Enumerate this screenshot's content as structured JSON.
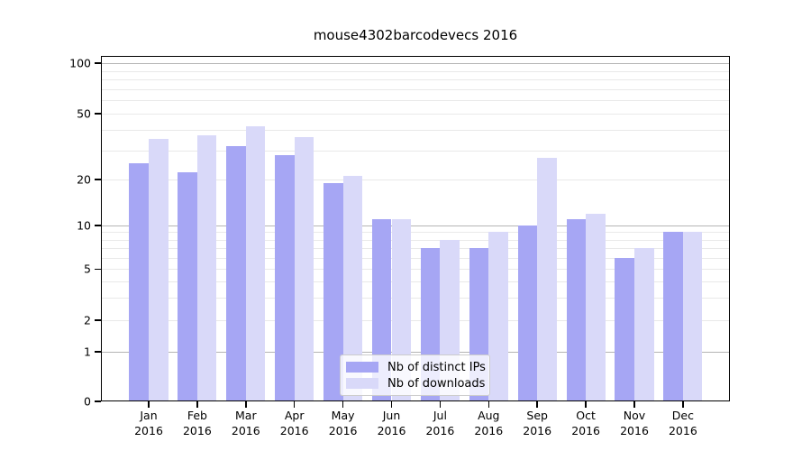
{
  "title": "mouse4302barcodevecs 2016",
  "legend": {
    "items": [
      {
        "label": "Nb of distinct IPs",
        "color": "#a6a6f4"
      },
      {
        "label": "Nb of downloads",
        "color": "#d9d9f9"
      }
    ]
  },
  "colors": {
    "series_ips": "#a6a6f4",
    "series_downloads": "#d9d9f9",
    "major_gridline": "#b4b4b4",
    "minor_gridline": "#e9e9e9",
    "axis": "#000000"
  },
  "chart_data": {
    "type": "bar",
    "title": "mouse4302barcodevecs 2016",
    "categories": [
      "Jan 2016",
      "Feb 2016",
      "Mar 2016",
      "Apr 2016",
      "May 2016",
      "Jun 2016",
      "Jul 2016",
      "Aug 2016",
      "Sep 2016",
      "Oct 2016",
      "Nov 2016",
      "Dec 2016"
    ],
    "series": [
      {
        "name": "Nb of distinct IPs",
        "color": "#a6a6f4",
        "values": [
          25,
          22,
          32,
          28,
          19,
          11,
          7,
          7,
          10,
          11,
          6,
          9
        ]
      },
      {
        "name": "Nb of downloads",
        "color": "#d9d9f9",
        "values": [
          35,
          37,
          42,
          36,
          21,
          11,
          8,
          9,
          27,
          12,
          7,
          9
        ]
      }
    ],
    "xlabel": "",
    "ylabel": "",
    "yscale": "symlog",
    "ylim": [
      0,
      100
    ],
    "yticks": [
      0,
      1,
      2,
      5,
      10,
      20,
      50,
      100
    ],
    "minor_gridline_values": [
      2,
      3,
      4,
      5,
      6,
      7,
      8,
      9,
      20,
      30,
      40,
      50,
      60,
      70,
      80,
      90
    ],
    "major_gridline_values": [
      1,
      10,
      100
    ],
    "grid": true,
    "legend_position": "lower center"
  }
}
